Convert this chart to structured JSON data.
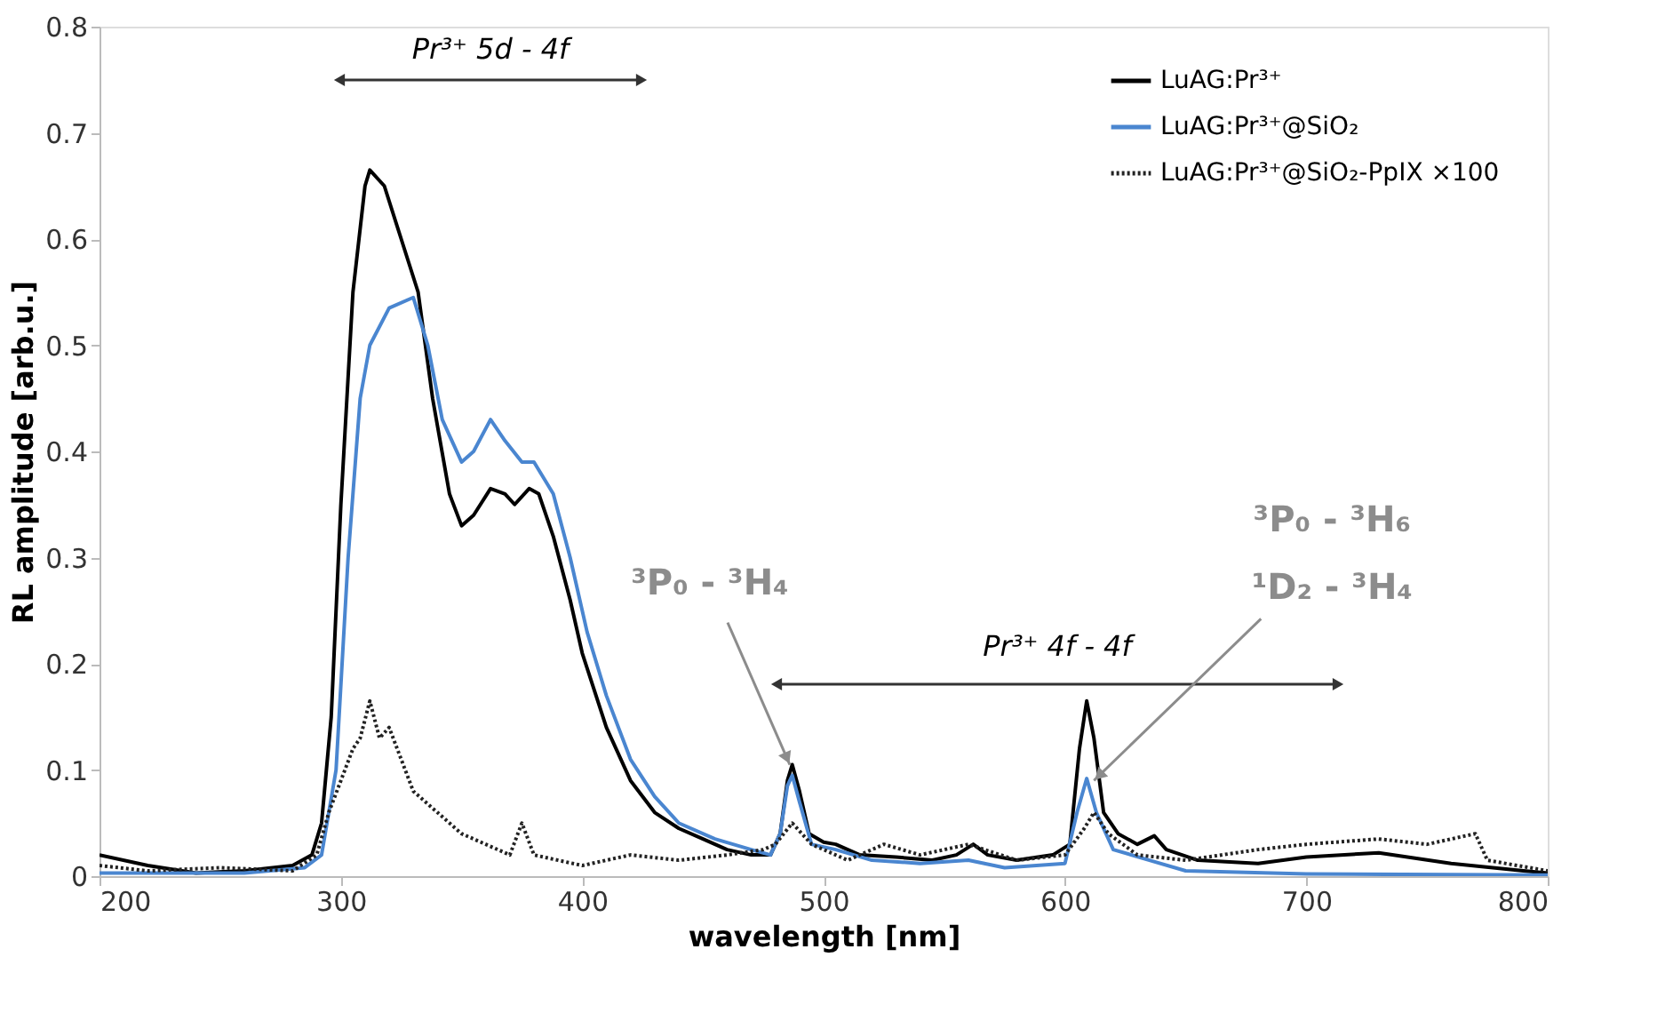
{
  "chart_data": {
    "type": "line",
    "xlabel": "wavelength [nm]",
    "ylabel": "RL amplitude [arb.u.]",
    "xlim": [
      200,
      800
    ],
    "xticks": [
      200,
      300,
      400,
      500,
      600,
      700,
      800
    ],
    "ylim": [
      0,
      0.8
    ],
    "yticks": [
      0,
      0.1,
      0.2,
      0.3,
      0.4,
      0.5,
      0.6,
      0.7,
      0.8
    ],
    "grid": false,
    "legend": "top right",
    "marker": "none",
    "series": [
      {
        "name": "LuAG:Pr³⁺",
        "color": "#000000",
        "line_style": "solid",
        "x": [
          200,
          220,
          240,
          260,
          280,
          288,
          292,
          296,
          300,
          305,
          310,
          312,
          318,
          325,
          332,
          338,
          345,
          350,
          355,
          362,
          368,
          372,
          378,
          382,
          388,
          395,
          400,
          410,
          420,
          430,
          440,
          450,
          460,
          470,
          478,
          482,
          485,
          487,
          490,
          494,
          500,
          505,
          515,
          530,
          545,
          555,
          562,
          568,
          580,
          595,
          602,
          606,
          609,
          612,
          616,
          622,
          630,
          637,
          642,
          655,
          680,
          700,
          730,
          760,
          790,
          800
        ],
        "values": [
          0.02,
          0.01,
          0.003,
          0.005,
          0.01,
          0.02,
          0.05,
          0.15,
          0.35,
          0.55,
          0.65,
          0.665,
          0.65,
          0.6,
          0.55,
          0.45,
          0.36,
          0.33,
          0.34,
          0.365,
          0.36,
          0.35,
          0.365,
          0.36,
          0.32,
          0.26,
          0.21,
          0.14,
          0.09,
          0.06,
          0.045,
          0.035,
          0.025,
          0.02,
          0.02,
          0.04,
          0.09,
          0.105,
          0.08,
          0.04,
          0.032,
          0.03,
          0.02,
          0.018,
          0.015,
          0.02,
          0.03,
          0.02,
          0.015,
          0.02,
          0.03,
          0.12,
          0.165,
          0.13,
          0.06,
          0.04,
          0.03,
          0.038,
          0.025,
          0.015,
          0.012,
          0.018,
          0.022,
          0.012,
          0.005,
          0.003
        ]
      },
      {
        "name": "LuAG:Pr³⁺@SiO₂",
        "color": "#4a86d0",
        "line_style": "solid",
        "x": [
          200,
          260,
          285,
          292,
          298,
          303,
          308,
          312,
          320,
          330,
          336,
          342,
          350,
          355,
          362,
          368,
          375,
          380,
          388,
          395,
          402,
          410,
          420,
          430,
          440,
          455,
          470,
          478,
          482,
          485,
          487,
          490,
          495,
          505,
          520,
          540,
          560,
          575,
          600,
          605,
          609,
          613,
          620,
          635,
          650,
          700,
          800
        ],
        "values": [
          0.003,
          0.003,
          0.008,
          0.02,
          0.1,
          0.3,
          0.45,
          0.5,
          0.535,
          0.545,
          0.5,
          0.43,
          0.39,
          0.4,
          0.43,
          0.41,
          0.39,
          0.39,
          0.36,
          0.3,
          0.23,
          0.17,
          0.11,
          0.075,
          0.05,
          0.035,
          0.025,
          0.02,
          0.04,
          0.085,
          0.095,
          0.07,
          0.03,
          0.025,
          0.015,
          0.012,
          0.015,
          0.008,
          0.012,
          0.06,
          0.092,
          0.06,
          0.025,
          0.015,
          0.005,
          0.002,
          0.001
        ]
      },
      {
        "name": "LuAG:Pr³⁺@SiO₂-PpIX   ×100",
        "color": "#222222",
        "line_style": "dotted",
        "x": [
          200,
          220,
          250,
          280,
          290,
          295,
          300,
          305,
          308,
          312,
          316,
          320,
          325,
          330,
          340,
          350,
          360,
          370,
          375,
          380,
          400,
          420,
          440,
          460,
          475,
          480,
          487,
          495,
          510,
          525,
          540,
          560,
          580,
          600,
          608,
          612,
          618,
          630,
          650,
          680,
          700,
          730,
          750,
          770,
          775,
          800
        ],
        "values": [
          0.01,
          0.005,
          0.008,
          0.005,
          0.02,
          0.06,
          0.09,
          0.12,
          0.13,
          0.165,
          0.13,
          0.14,
          0.11,
          0.08,
          0.06,
          0.04,
          0.03,
          0.02,
          0.05,
          0.02,
          0.01,
          0.02,
          0.015,
          0.02,
          0.025,
          0.03,
          0.05,
          0.03,
          0.015,
          0.03,
          0.02,
          0.03,
          0.015,
          0.02,
          0.045,
          0.06,
          0.04,
          0.02,
          0.015,
          0.025,
          0.03,
          0.035,
          0.03,
          0.04,
          0.015,
          0.005
        ]
      }
    ],
    "annotations": [
      "Pr³⁺ 5d - 4f",
      "Pr³⁺ 4f - 4f",
      {
        "text": "³P₀ - ³H₄",
        "x": 486,
        "y": 0.105
      },
      {
        "text": "³P₀ - ³H₆\n¹D₂ - ³H₄",
        "x": 612,
        "y": 0.09
      }
    ]
  }
}
